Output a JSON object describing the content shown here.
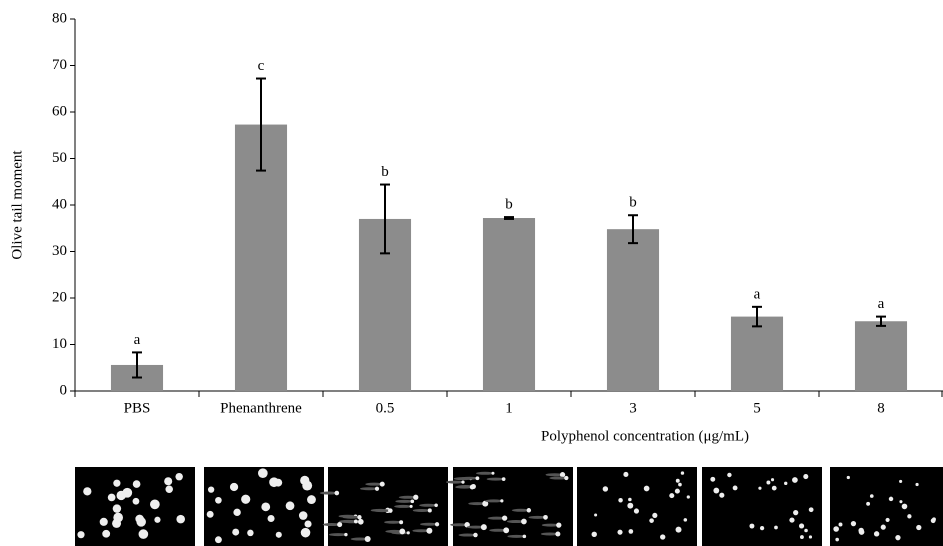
{
  "chart_data": {
    "type": "bar",
    "y_label": "Olive tail moment",
    "x_label": "Polyphenol concentration (μg/mL)",
    "categories": [
      "PBS",
      "Phenanthrene",
      "0.5",
      "1",
      "3",
      "5",
      "8"
    ],
    "values": [
      5.6,
      57.3,
      37,
      37.2,
      34.8,
      16,
      15
    ],
    "errors": [
      2.7,
      9.9,
      7.4,
      0.2,
      3,
      2.1,
      1
    ],
    "letters": [
      "a",
      "c",
      "b",
      "b",
      "b",
      "a",
      "a"
    ],
    "color": "#8c8c8c",
    "ylim": [
      0,
      80
    ],
    "yticks": [
      0,
      10,
      20,
      30,
      40,
      50,
      60,
      70,
      80
    ]
  }
}
